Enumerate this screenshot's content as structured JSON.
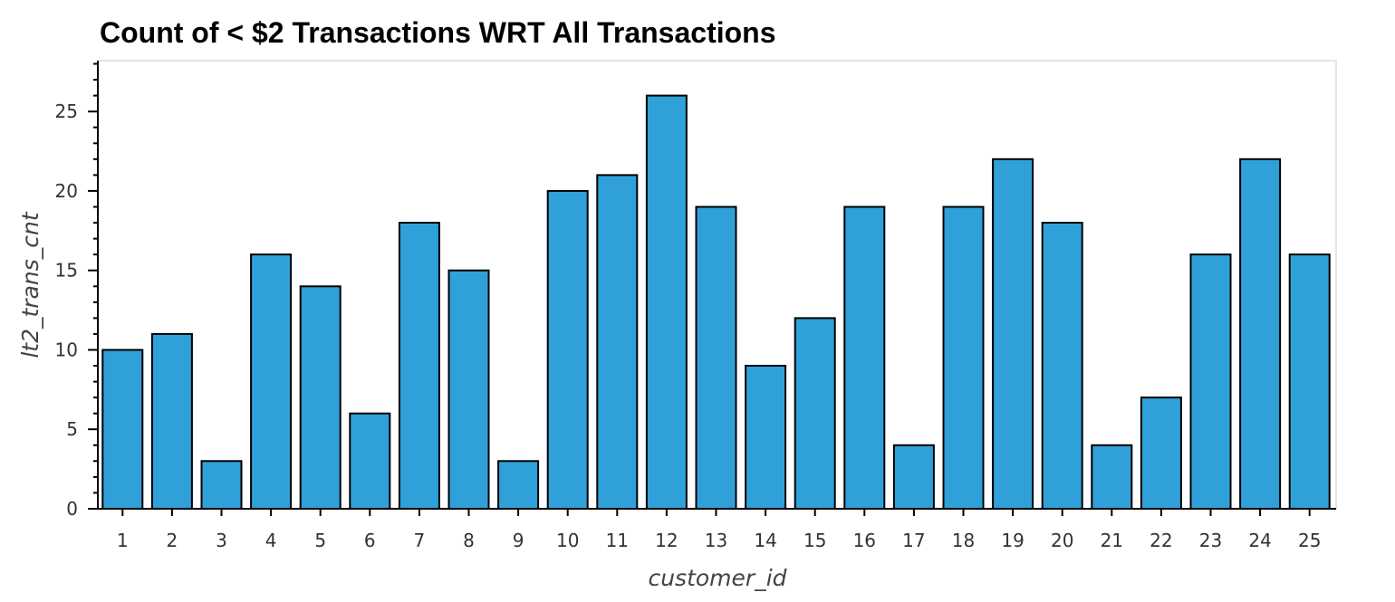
{
  "chart_data": {
    "type": "bar",
    "title": "Count of < $2 Transactions WRT All Transactions",
    "xlabel": "customer_id",
    "ylabel": "lt2_trans_cnt",
    "categories": [
      "1",
      "2",
      "3",
      "4",
      "5",
      "6",
      "7",
      "8",
      "9",
      "10",
      "11",
      "12",
      "13",
      "14",
      "15",
      "16",
      "17",
      "18",
      "19",
      "20",
      "21",
      "22",
      "23",
      "24",
      "25"
    ],
    "values": [
      10,
      11,
      3,
      16,
      14,
      6,
      18,
      15,
      3,
      20,
      21,
      26,
      19,
      9,
      12,
      19,
      4,
      19,
      22,
      18,
      4,
      7,
      16,
      22,
      16
    ],
    "ylim": [
      0,
      28.2
    ],
    "yticks": [
      0,
      5,
      10,
      15,
      20,
      25
    ],
    "grid": false,
    "bar_color": "#2fa1d8",
    "edge_color": "#000000"
  }
}
